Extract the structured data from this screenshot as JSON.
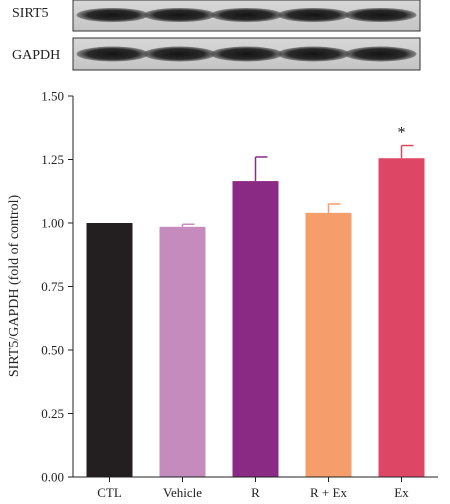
{
  "blot": {
    "rows": [
      {
        "label": "SIRT5"
      },
      {
        "label": "GAPDH"
      }
    ]
  },
  "chart_data": {
    "type": "bar",
    "title": "",
    "xlabel": "",
    "ylabel": "SIRT5/GAPDH (fold of control)",
    "categories": [
      "CTL",
      "Vehicle",
      "R",
      "R + Ex",
      "Ex"
    ],
    "values": [
      1.0,
      0.985,
      1.165,
      1.04,
      1.255
    ],
    "errors": [
      0.0,
      0.01,
      0.095,
      0.035,
      0.05
    ],
    "colors": [
      "#231f20",
      "#c48bbc",
      "#8b2a84",
      "#f69d6c",
      "#de4665"
    ],
    "annotations": [
      "",
      "",
      "",
      "",
      "*"
    ],
    "ylim": [
      0,
      1.5
    ],
    "yticks": [
      "0.00",
      "0.25",
      "0.50",
      "0.75",
      "1.00",
      "1.25",
      "1.50"
    ],
    "grid": false
  }
}
